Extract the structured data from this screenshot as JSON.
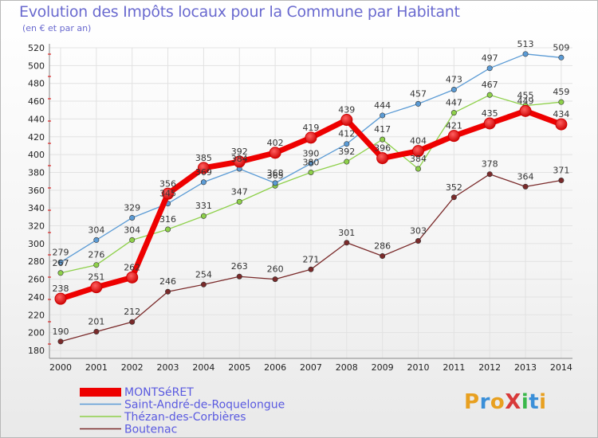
{
  "header": {
    "title": "Evolution des Impôts locaux pour la Commune par Habitant",
    "subtitle": "(en € et par an)"
  },
  "logo": {
    "text": "ProXiti",
    "colors": [
      "#e8a020",
      "#3a8fd8",
      "#e8a020",
      "#d83a3a",
      "#3ab84a",
      "#3a8fd8",
      "#e8a020"
    ]
  },
  "chart_data": {
    "type": "line",
    "x": [
      "2000",
      "2001",
      "2002",
      "2003",
      "2004",
      "2005",
      "2006",
      "2007",
      "2008",
      "2009",
      "2010",
      "2011",
      "2012",
      "2013",
      "2014"
    ],
    "ylim": [
      180,
      520
    ],
    "yticks": [
      180,
      200,
      220,
      240,
      260,
      280,
      300,
      320,
      340,
      360,
      380,
      400,
      420,
      440,
      460,
      480,
      500,
      520
    ],
    "grid": true,
    "legend_position": "bottom-left",
    "series": [
      {
        "name": "MONTSéRET",
        "color": "#ee0000",
        "values": [
          238,
          251,
          262,
          356,
          385,
          392,
          402,
          419,
          439,
          396,
          404,
          421,
          435,
          449,
          434
        ]
      },
      {
        "name": "Saint-André-de-Roquelongue",
        "color": "#5b9bd5",
        "values": [
          279,
          304,
          329,
          345,
          369,
          384,
          368,
          390,
          412,
          444,
          457,
          473,
          497,
          513,
          509
        ]
      },
      {
        "name": "Thézan-des-Corbières",
        "color": "#8ed04a",
        "values": [
          267,
          276,
          304,
          316,
          331,
          347,
          365,
          380,
          392,
          417,
          384,
          447,
          467,
          455,
          459
        ]
      },
      {
        "name": "Boutenac",
        "color": "#7a2a2a",
        "values": [
          190,
          201,
          212,
          246,
          254,
          263,
          260,
          271,
          301,
          286,
          303,
          352,
          378,
          364,
          371
        ]
      }
    ]
  }
}
